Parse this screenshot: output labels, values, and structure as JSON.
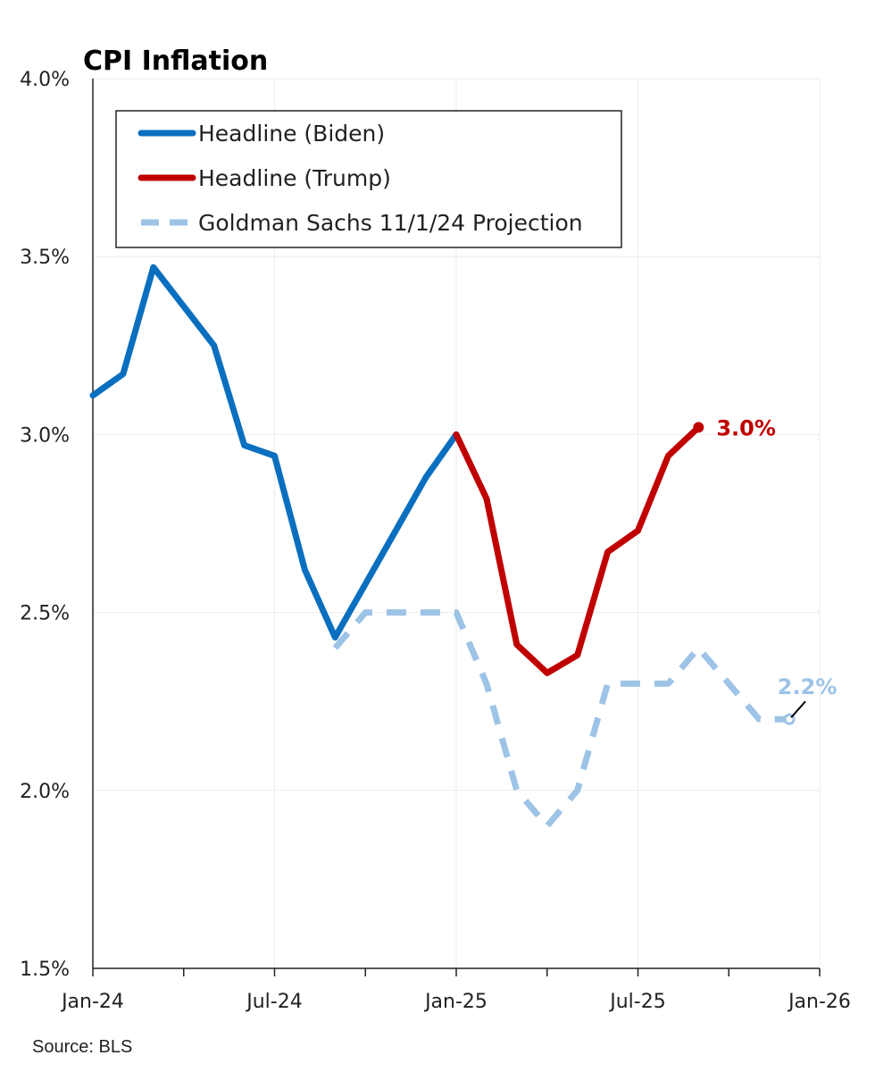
{
  "chart_data": {
    "type": "line",
    "title": "CPI Inflation",
    "source": "Source: BLS",
    "xlabel": "",
    "ylabel": "",
    "ylim": [
      1.5,
      4.0
    ],
    "yticks": [
      "1.5%",
      "2.0%",
      "2.5%",
      "3.0%",
      "3.5%",
      "4.0%"
    ],
    "ytick_values": [
      1.5,
      2.0,
      2.5,
      3.0,
      3.5,
      4.0
    ],
    "xlim": [
      "2024-01",
      "2026-01"
    ],
    "xticks": [
      "Jan-24",
      "Jul-24",
      "Jan-25",
      "Jul-25",
      "Jan-26"
    ],
    "xtick_values": [
      "2024-01",
      "2024-07",
      "2025-01",
      "2025-07",
      "2026-01"
    ],
    "grid": true,
    "legend_position": "top-left",
    "series": [
      {
        "name": "Headline (Biden)",
        "color": "#0b6fbf",
        "style": "solid",
        "points": [
          [
            "2024-01",
            3.11
          ],
          [
            "2024-02",
            3.17
          ],
          [
            "2024-03",
            3.47
          ],
          [
            "2024-04",
            3.36
          ],
          [
            "2024-05",
            3.25
          ],
          [
            "2024-06",
            2.97
          ],
          [
            "2024-07",
            2.94
          ],
          [
            "2024-08",
            2.62
          ],
          [
            "2024-09",
            2.43
          ],
          [
            "2024-10",
            2.58
          ],
          [
            "2024-11",
            2.73
          ],
          [
            "2024-12",
            2.88
          ],
          [
            "2025-01",
            3.0
          ]
        ]
      },
      {
        "name": "Headline (Trump)",
        "color": "#c00000",
        "style": "solid",
        "points": [
          [
            "2025-01",
            3.0
          ],
          [
            "2025-02",
            2.82
          ],
          [
            "2025-03",
            2.41
          ],
          [
            "2025-04",
            2.33
          ],
          [
            "2025-05",
            2.38
          ],
          [
            "2025-06",
            2.67
          ],
          [
            "2025-07",
            2.73
          ],
          [
            "2025-08",
            2.94
          ],
          [
            "2025-09",
            3.02
          ]
        ],
        "end_label": "3.0%"
      },
      {
        "name": "Goldman Sachs 11/1/24 Projection",
        "color": "#9dc3e6",
        "style": "dashed",
        "points": [
          [
            "2024-09",
            2.4
          ],
          [
            "2024-10",
            2.5
          ],
          [
            "2024-11",
            2.5
          ],
          [
            "2024-12",
            2.5
          ],
          [
            "2025-01",
            2.5
          ],
          [
            "2025-02",
            2.3
          ],
          [
            "2025-03",
            2.0
          ],
          [
            "2025-04",
            1.9
          ],
          [
            "2025-05",
            2.0
          ],
          [
            "2025-06",
            2.3
          ],
          [
            "2025-07",
            2.3
          ],
          [
            "2025-08",
            2.3
          ],
          [
            "2025-09",
            2.4
          ],
          [
            "2025-10",
            2.3
          ],
          [
            "2025-11",
            2.2
          ],
          [
            "2025-12",
            2.2
          ]
        ],
        "end_label": "2.2%"
      }
    ]
  }
}
